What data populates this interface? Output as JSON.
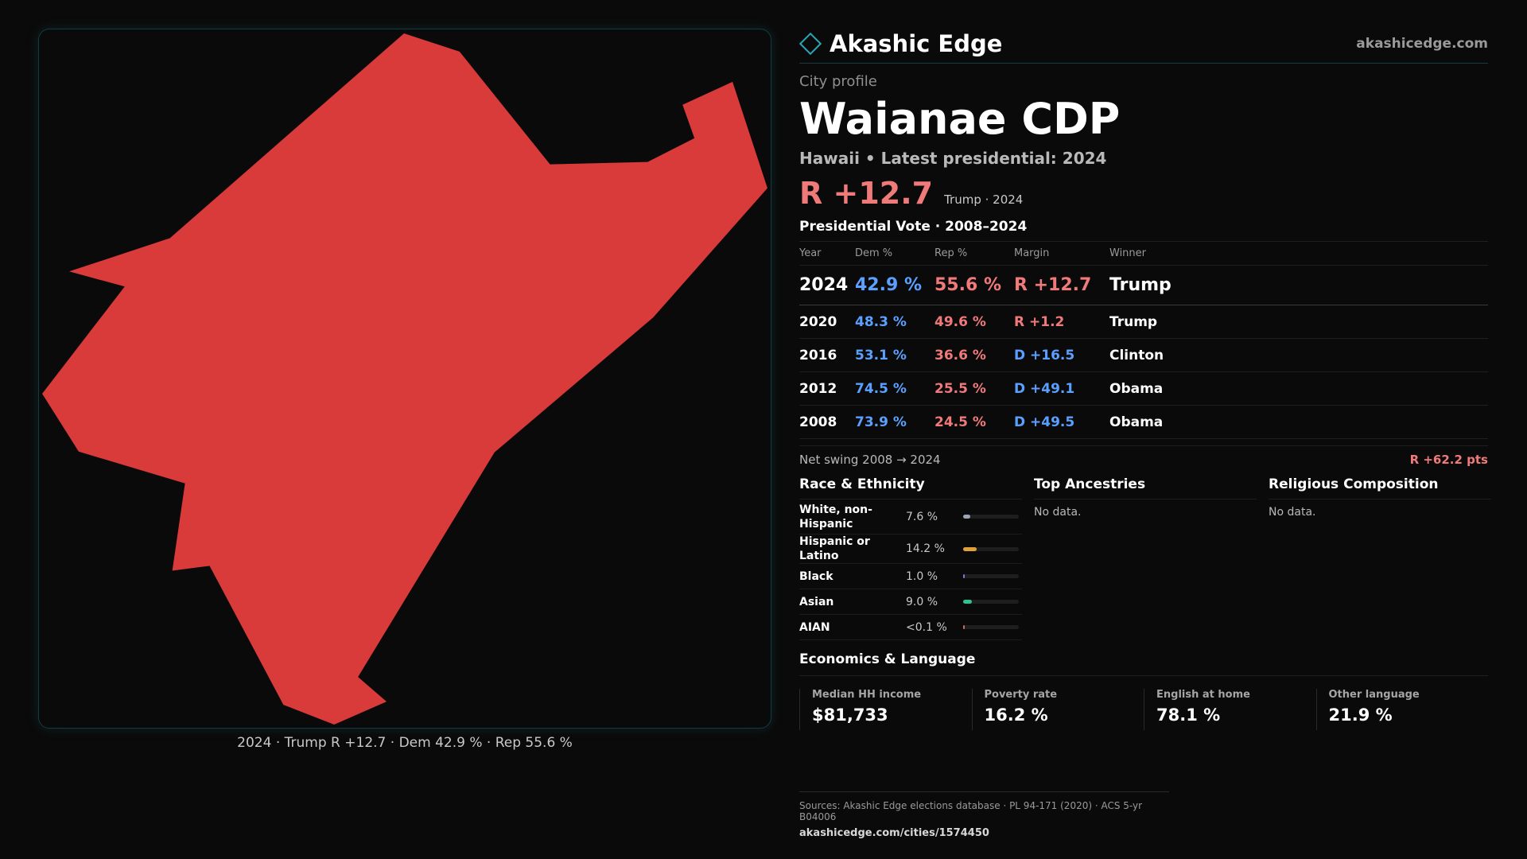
{
  "map": {
    "caption": "2024 · Trump R +12.7 · Dem 42.9 % · Rep 55.6 %",
    "fill_color": "#d93a3a",
    "border_color": "#123c44"
  },
  "header": {
    "brand_name": "Akashic Edge",
    "brand_icon": "diamond-icon",
    "site_url": "akashicedge.com"
  },
  "profile": {
    "kicker": "City profile",
    "city_name": "Waianae CDP",
    "subtitle": "Hawaii • Latest presidential: 2024",
    "headline_margin": "R +12.7",
    "headline_note": "Trump · 2024"
  },
  "vote": {
    "title": "Presidential Vote · 2008–2024",
    "columns": [
      "Year",
      "Dem %",
      "Rep %",
      "Margin",
      "Winner"
    ],
    "rows": [
      {
        "year": "2024",
        "dem": "42.9 %",
        "rep": "55.6 %",
        "margin": "R +12.7",
        "winner": "Trump",
        "party": "R"
      },
      {
        "year": "2020",
        "dem": "48.3 %",
        "rep": "49.6 %",
        "margin": "R +1.2",
        "winner": "Trump",
        "party": "R"
      },
      {
        "year": "2016",
        "dem": "53.1 %",
        "rep": "36.6 %",
        "margin": "D +16.5",
        "winner": "Clinton",
        "party": "D"
      },
      {
        "year": "2012",
        "dem": "74.5 %",
        "rep": "25.5 %",
        "margin": "D +49.1",
        "winner": "Obama",
        "party": "D"
      },
      {
        "year": "2008",
        "dem": "73.9 %",
        "rep": "24.5 %",
        "margin": "D +49.5",
        "winner": "Obama",
        "party": "D"
      }
    ],
    "swing_label": "Net swing 2008 → 2024",
    "swing_value": "R +62.2 pts"
  },
  "race": {
    "title": "Race & Ethnicity",
    "items": [
      {
        "label": "White, non-Hispanic",
        "pct": "7.6 %",
        "share": 0.076,
        "color": "#9aa4b2"
      },
      {
        "label": "Hispanic or Latino",
        "pct": "14.2 %",
        "share": 0.142,
        "color": "#e0a13a"
      },
      {
        "label": "Black",
        "pct": "1.0 %",
        "share": 0.01,
        "color": "#8a6fe0"
      },
      {
        "label": "Asian",
        "pct": "9.0 %",
        "share": 0.09,
        "color": "#2fc28a"
      },
      {
        "label": "AIAN",
        "pct": "<0.1 %",
        "share": 0.0,
        "color": "#c96b6b"
      }
    ]
  },
  "ancestries": {
    "title": "Top Ancestries",
    "empty": "No data."
  },
  "religion": {
    "title": "Religious Composition",
    "empty": "No data."
  },
  "economics": {
    "title": "Economics & Language",
    "cards": [
      {
        "label": "Median HH income",
        "value": "$81,733"
      },
      {
        "label": "Poverty rate",
        "value": "16.2 %"
      },
      {
        "label": "English at home",
        "value": "78.1 %"
      },
      {
        "label": "Other language",
        "value": "21.9 %"
      }
    ]
  },
  "footer": {
    "sources": "Sources: Akashic Edge elections database · PL 94-171 (2020) · ACS 5-yr B04006",
    "url": "akashicedge.com/cities/1574450"
  }
}
